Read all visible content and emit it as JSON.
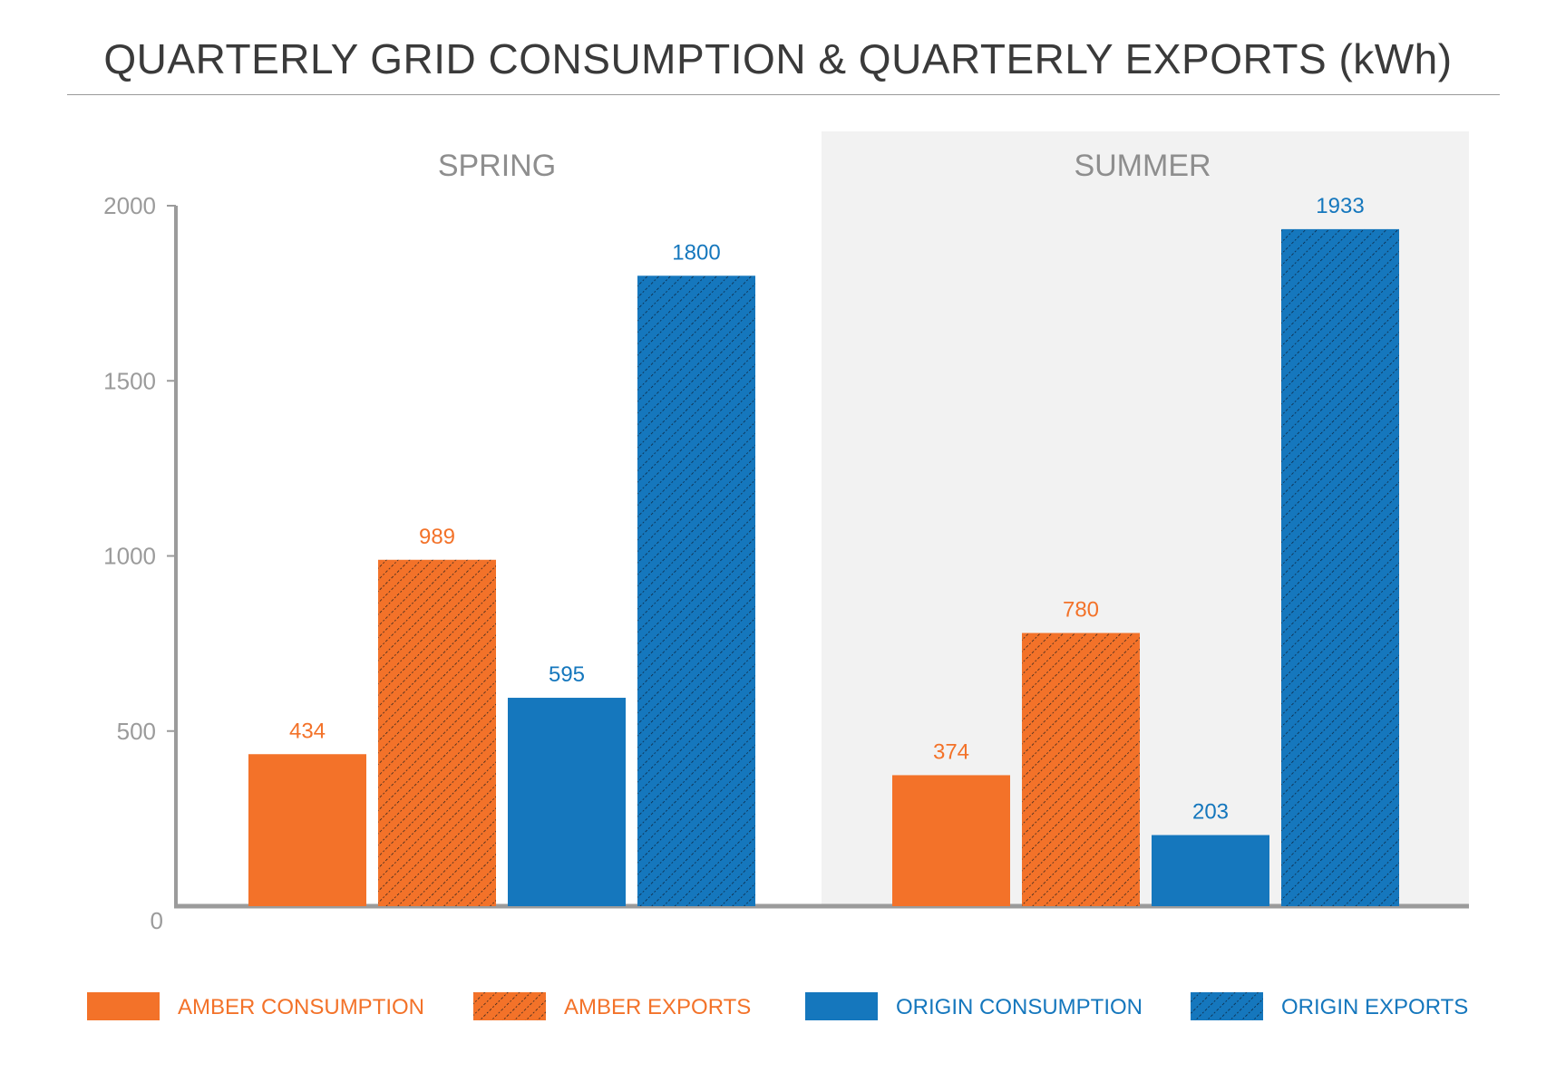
{
  "chart_data": {
    "type": "bar",
    "title": "QUARTERLY GRID CONSUMPTION & QUARTERLY EXPORTS (kWh)",
    "categories": [
      "SPRING",
      "SUMMER"
    ],
    "series": [
      {
        "name": "AMBER CONSUMPTION",
        "values": [
          434,
          374
        ],
        "color": "#f37229",
        "hatched": false
      },
      {
        "name": "AMBER EXPORTS",
        "values": [
          989,
          780
        ],
        "color": "#f37229",
        "hatched": true
      },
      {
        "name": "ORIGIN CONSUMPTION",
        "values": [
          595,
          203
        ],
        "color": "#1577bd",
        "hatched": false
      },
      {
        "name": "ORIGIN EXPORTS",
        "values": [
          1800,
          1933
        ],
        "color": "#1577bd",
        "hatched": true
      }
    ],
    "yticks": [
      0,
      500,
      1000,
      1500,
      2000
    ],
    "ylim": [
      0,
      2000
    ],
    "grid": false,
    "legend_position": "bottom",
    "highlighted_category": "SUMMER"
  },
  "colors": {
    "axis": "#9b9b9b",
    "tick_label": "#9b9b9b",
    "category_label": "#8e8e8e",
    "highlight_band": "#f2f2f2"
  }
}
